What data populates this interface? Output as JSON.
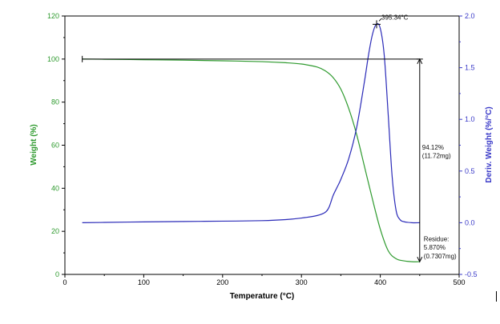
{
  "chart_data": {
    "type": "line",
    "title": "",
    "xlabel": "Temperature (°C)",
    "ylabel": "Weight (%)",
    "y2label": "Deriv. Weight (%/°C)",
    "xlim": [
      0,
      500
    ],
    "ylim": [
      0,
      120
    ],
    "y2lim": [
      -0.5,
      2.0
    ],
    "xticks": [
      "0",
      "100",
      "200",
      "300",
      "400",
      "500"
    ],
    "yticks": [
      "0",
      "20",
      "40",
      "60",
      "80",
      "100",
      "120"
    ],
    "y2ticks": [
      "-0.5",
      "0.0",
      "0.5",
      "1.0",
      "1.5",
      "2.0"
    ],
    "grid": false,
    "colors": {
      "weight": "#2e9a2e",
      "deriv": "#2a2ab8",
      "y2axis": "#3a3ac8",
      "annotation": "#000000"
    },
    "series": [
      {
        "axis": "left",
        "x": [
          22,
          50,
          100,
          150,
          200,
          250,
          280,
          300,
          320,
          330,
          340,
          350,
          360,
          370,
          380,
          390,
          400,
          410,
          420,
          430,
          440,
          450
        ],
        "values": [
          100.0,
          99.9,
          99.7,
          99.5,
          99.2,
          98.8,
          98.3,
          97.7,
          96.3,
          94.6,
          91.5,
          86.0,
          77.0,
          65.0,
          50.0,
          35.0,
          21.0,
          11.0,
          7.3,
          6.3,
          5.9,
          5.87
        ]
      },
      {
        "axis": "right",
        "x": [
          22,
          50,
          100,
          150,
          200,
          250,
          280,
          300,
          320,
          330,
          335,
          340,
          345,
          350,
          360,
          370,
          380,
          385,
          390,
          395,
          400,
          405,
          410,
          415,
          420,
          425,
          430,
          440,
          450
        ],
        "values": [
          0.0,
          0.003,
          0.008,
          0.012,
          0.015,
          0.02,
          0.03,
          0.045,
          0.07,
          0.1,
          0.15,
          0.26,
          0.34,
          0.42,
          0.62,
          0.92,
          1.37,
          1.62,
          1.82,
          1.92,
          1.88,
          1.62,
          1.05,
          0.45,
          0.12,
          0.03,
          0.01,
          0.0,
          0.0
        ]
      }
    ],
    "annotations": {
      "peak": {
        "x": 395.34,
        "y2": 1.92,
        "label": "395.34°C"
      },
      "loss": {
        "x1": 22,
        "x2": 450,
        "y": 100.0,
        "y_bottom": 5.87,
        "line1": "94.12%",
        "line2": "(11.72mg)"
      },
      "residue": {
        "line1": "Residue:",
        "line2": "5.870%",
        "line3": "(0.7307mg)"
      }
    }
  }
}
